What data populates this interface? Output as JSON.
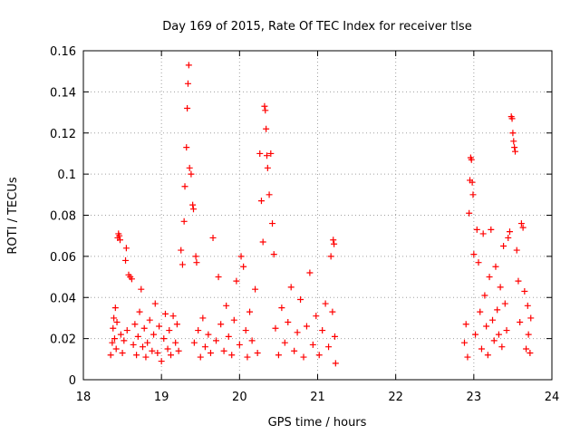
{
  "chart_data": {
    "type": "scatter",
    "title": "Day 169 of 2015, Rate Of TEC Index for receiver tlse",
    "xlabel": "GPS time / hours",
    "ylabel": "ROTI / TECUs",
    "xlim": [
      18,
      24
    ],
    "ylim": [
      0,
      0.16
    ],
    "x_ticks": [
      18,
      19,
      20,
      21,
      22,
      23,
      24
    ],
    "y_ticks": [
      0,
      0.02,
      0.04,
      0.06,
      0.08,
      0.1,
      0.12,
      0.14,
      0.16
    ],
    "x_tick_labels": [
      "18",
      "19",
      "20",
      "21",
      "22",
      "23",
      "24"
    ],
    "y_tick_labels": [
      "0",
      "0.02",
      "0.04",
      "0.06",
      "0.08",
      "0.1",
      "0.12",
      "0.14",
      "0.16"
    ],
    "grid": true,
    "marker": "+",
    "series": [
      {
        "name": "ROTI",
        "color": "#ff0000",
        "points": [
          [
            18.35,
            0.012
          ],
          [
            18.37,
            0.018
          ],
          [
            18.38,
            0.025
          ],
          [
            18.39,
            0.03
          ],
          [
            18.4,
            0.02
          ],
          [
            18.41,
            0.035
          ],
          [
            18.42,
            0.015
          ],
          [
            18.43,
            0.028
          ],
          [
            18.44,
            0.069
          ],
          [
            18.45,
            0.071
          ],
          [
            18.46,
            0.07
          ],
          [
            18.47,
            0.068
          ],
          [
            18.48,
            0.022
          ],
          [
            18.5,
            0.013
          ],
          [
            18.52,
            0.019
          ],
          [
            18.54,
            0.058
          ],
          [
            18.55,
            0.064
          ],
          [
            18.56,
            0.024
          ],
          [
            18.58,
            0.051
          ],
          [
            18.6,
            0.05
          ],
          [
            18.62,
            0.049
          ],
          [
            18.64,
            0.017
          ],
          [
            18.66,
            0.027
          ],
          [
            18.68,
            0.012
          ],
          [
            18.7,
            0.021
          ],
          [
            18.72,
            0.033
          ],
          [
            18.74,
            0.044
          ],
          [
            18.76,
            0.016
          ],
          [
            18.78,
            0.025
          ],
          [
            18.8,
            0.011
          ],
          [
            18.82,
            0.018
          ],
          [
            18.85,
            0.029
          ],
          [
            18.88,
            0.014
          ],
          [
            18.9,
            0.022
          ],
          [
            18.92,
            0.037
          ],
          [
            18.95,
            0.013
          ],
          [
            18.97,
            0.026
          ],
          [
            19.0,
            0.009
          ],
          [
            19.03,
            0.02
          ],
          [
            19.05,
            0.032
          ],
          [
            19.08,
            0.015
          ],
          [
            19.1,
            0.024
          ],
          [
            19.12,
            0.012
          ],
          [
            19.15,
            0.031
          ],
          [
            19.18,
            0.018
          ],
          [
            19.2,
            0.027
          ],
          [
            19.22,
            0.014
          ],
          [
            19.25,
            0.063
          ],
          [
            19.27,
            0.056
          ],
          [
            19.29,
            0.077
          ],
          [
            19.3,
            0.094
          ],
          [
            19.32,
            0.113
          ],
          [
            19.33,
            0.132
          ],
          [
            19.34,
            0.144
          ],
          [
            19.35,
            0.153
          ],
          [
            19.36,
            0.103
          ],
          [
            19.38,
            0.1
          ],
          [
            19.4,
            0.085
          ],
          [
            19.41,
            0.083
          ],
          [
            19.42,
            0.018
          ],
          [
            19.44,
            0.06
          ],
          [
            19.45,
            0.057
          ],
          [
            19.47,
            0.024
          ],
          [
            19.5,
            0.011
          ],
          [
            19.53,
            0.03
          ],
          [
            19.56,
            0.016
          ],
          [
            19.6,
            0.022
          ],
          [
            19.63,
            0.013
          ],
          [
            19.66,
            0.069
          ],
          [
            19.7,
            0.019
          ],
          [
            19.73,
            0.05
          ],
          [
            19.76,
            0.027
          ],
          [
            19.8,
            0.014
          ],
          [
            19.83,
            0.036
          ],
          [
            19.86,
            0.021
          ],
          [
            19.9,
            0.012
          ],
          [
            19.93,
            0.029
          ],
          [
            19.96,
            0.048
          ],
          [
            20.0,
            0.017
          ],
          [
            20.02,
            0.06
          ],
          [
            20.05,
            0.055
          ],
          [
            20.08,
            0.024
          ],
          [
            20.1,
            0.011
          ],
          [
            20.13,
            0.033
          ],
          [
            20.16,
            0.019
          ],
          [
            20.2,
            0.044
          ],
          [
            20.23,
            0.013
          ],
          [
            20.26,
            0.11
          ],
          [
            20.28,
            0.087
          ],
          [
            20.3,
            0.067
          ],
          [
            20.32,
            0.133
          ],
          [
            20.33,
            0.131
          ],
          [
            20.34,
            0.122
          ],
          [
            20.35,
            0.109
          ],
          [
            20.36,
            0.103
          ],
          [
            20.38,
            0.09
          ],
          [
            20.4,
            0.11
          ],
          [
            20.42,
            0.076
          ],
          [
            20.44,
            0.061
          ],
          [
            20.46,
            0.025
          ],
          [
            20.5,
            0.012
          ],
          [
            20.54,
            0.035
          ],
          [
            20.58,
            0.018
          ],
          [
            20.62,
            0.028
          ],
          [
            20.66,
            0.045
          ],
          [
            20.7,
            0.014
          ],
          [
            20.74,
            0.023
          ],
          [
            20.78,
            0.039
          ],
          [
            20.82,
            0.011
          ],
          [
            20.86,
            0.026
          ],
          [
            20.9,
            0.052
          ],
          [
            20.94,
            0.017
          ],
          [
            20.98,
            0.031
          ],
          [
            21.02,
            0.012
          ],
          [
            21.06,
            0.024
          ],
          [
            21.1,
            0.037
          ],
          [
            21.14,
            0.016
          ],
          [
            21.17,
            0.06
          ],
          [
            21.19,
            0.033
          ],
          [
            21.2,
            0.068
          ],
          [
            21.21,
            0.066
          ],
          [
            21.22,
            0.021
          ],
          [
            21.23,
            0.008
          ],
          [
            22.88,
            0.018
          ],
          [
            22.9,
            0.027
          ],
          [
            22.92,
            0.011
          ],
          [
            22.94,
            0.081
          ],
          [
            22.95,
            0.097
          ],
          [
            22.96,
            0.108
          ],
          [
            22.97,
            0.107
          ],
          [
            22.98,
            0.096
          ],
          [
            22.99,
            0.09
          ],
          [
            23.0,
            0.061
          ],
          [
            23.02,
            0.022
          ],
          [
            23.04,
            0.073
          ],
          [
            23.06,
            0.057
          ],
          [
            23.08,
            0.033
          ],
          [
            23.1,
            0.015
          ],
          [
            23.12,
            0.071
          ],
          [
            23.14,
            0.041
          ],
          [
            23.16,
            0.026
          ],
          [
            23.18,
            0.012
          ],
          [
            23.2,
            0.05
          ],
          [
            23.22,
            0.073
          ],
          [
            23.24,
            0.029
          ],
          [
            23.26,
            0.019
          ],
          [
            23.28,
            0.055
          ],
          [
            23.3,
            0.034
          ],
          [
            23.32,
            0.022
          ],
          [
            23.34,
            0.045
          ],
          [
            23.36,
            0.016
          ],
          [
            23.38,
            0.065
          ],
          [
            23.4,
            0.037
          ],
          [
            23.42,
            0.024
          ],
          [
            23.44,
            0.069
          ],
          [
            23.46,
            0.072
          ],
          [
            23.48,
            0.128
          ],
          [
            23.49,
            0.127
          ],
          [
            23.5,
            0.12
          ],
          [
            23.51,
            0.116
          ],
          [
            23.52,
            0.113
          ],
          [
            23.53,
            0.111
          ],
          [
            23.55,
            0.063
          ],
          [
            23.57,
            0.048
          ],
          [
            23.59,
            0.028
          ],
          [
            23.61,
            0.076
          ],
          [
            23.63,
            0.074
          ],
          [
            23.65,
            0.043
          ],
          [
            23.67,
            0.015
          ],
          [
            23.69,
            0.036
          ],
          [
            23.7,
            0.022
          ],
          [
            23.72,
            0.013
          ],
          [
            23.73,
            0.03
          ]
        ]
      }
    ]
  }
}
